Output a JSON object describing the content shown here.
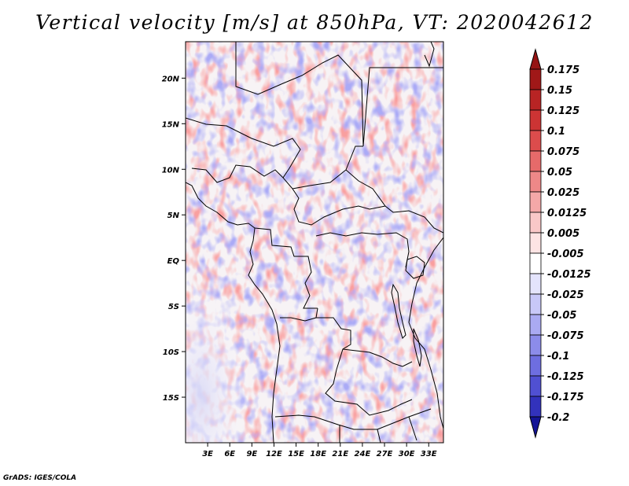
{
  "title": "Vertical velocity [m/s] at 850hPa, VT: 2020042612",
  "footer": "GrADS: IGES/COLA",
  "map": {
    "variable": "Vertical velocity",
    "units": "m/s",
    "level": "850hPa",
    "valid_time": "2020042612",
    "lon_range": [
      0,
      35
    ],
    "lat_range": [
      -20,
      24
    ],
    "x_ticks": [
      {
        "value": 3,
        "label": "3E"
      },
      {
        "value": 6,
        "label": "6E"
      },
      {
        "value": 9,
        "label": "9E"
      },
      {
        "value": 12,
        "label": "12E"
      },
      {
        "value": 15,
        "label": "15E"
      },
      {
        "value": 18,
        "label": "18E"
      },
      {
        "value": 21,
        "label": "21E"
      },
      {
        "value": 24,
        "label": "24E"
      },
      {
        "value": 27,
        "label": "27E"
      },
      {
        "value": 30,
        "label": "30E"
      },
      {
        "value": 33,
        "label": "33E"
      }
    ],
    "y_ticks": [
      {
        "value": 20,
        "label": "20N"
      },
      {
        "value": 15,
        "label": "15N"
      },
      {
        "value": 10,
        "label": "10N"
      },
      {
        "value": 5,
        "label": "5N"
      },
      {
        "value": 0,
        "label": "EQ"
      },
      {
        "value": -5,
        "label": "5S"
      },
      {
        "value": -10,
        "label": "10S"
      },
      {
        "value": -15,
        "label": "15S"
      }
    ]
  },
  "colorbar": {
    "levels": [
      {
        "label": "0.175",
        "color": "#a01818"
      },
      {
        "label": "0.15",
        "color": "#b82424"
      },
      {
        "label": "0.125",
        "color": "#cc3434"
      },
      {
        "label": "0.1",
        "color": "#dc4c4c"
      },
      {
        "label": "0.075",
        "color": "#e66a6a"
      },
      {
        "label": "0.05",
        "color": "#ee8888"
      },
      {
        "label": "0.025",
        "color": "#f4a8a8"
      },
      {
        "label": "0.0125",
        "color": "#f9c8c8"
      },
      {
        "label": "0.005",
        "color": "#fde4e4"
      },
      {
        "label": "-0.005",
        "color": "#ffffff"
      },
      {
        "label": "-0.0125",
        "color": "#e4e4fc"
      },
      {
        "label": "-0.025",
        "color": "#c8c8f8"
      },
      {
        "label": "-0.05",
        "color": "#aaaaf2"
      },
      {
        "label": "-0.075",
        "color": "#8c8cea"
      },
      {
        "label": "-0.1",
        "color": "#6e6ee0"
      },
      {
        "label": "-0.125",
        "color": "#5050d2"
      },
      {
        "label": "-0.175",
        "color": "#3232bc"
      },
      {
        "label": "-0.2",
        "color": "#1e1ea8"
      }
    ],
    "top_arrow_color": "#961414",
    "bottom_arrow_color": "#141496"
  }
}
